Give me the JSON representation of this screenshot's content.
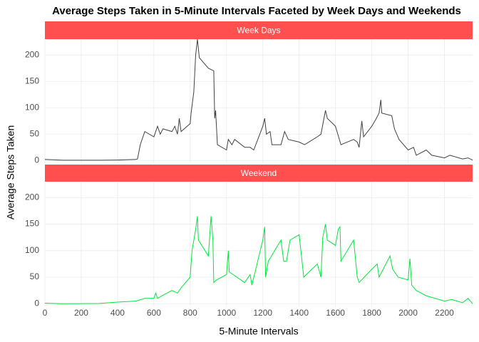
{
  "chart_data": [
    {
      "type": "line",
      "title": "Average Steps Taken in 5-Minute Intervals Faceted by Week Days and Weekends",
      "x_label": "5-Minute Intervals",
      "y_label": "Average Steps Taken",
      "strip_label": "Week Days",
      "color": "#404040",
      "x": [
        0,
        100,
        200,
        300,
        400,
        500,
        510,
        525,
        550,
        600,
        620,
        635,
        650,
        700,
        715,
        730,
        740,
        750,
        800,
        805,
        820,
        830,
        840,
        850,
        900,
        930,
        935,
        940,
        950,
        1000,
        1010,
        1030,
        1045,
        1100,
        1130,
        1150,
        1200,
        1210,
        1220,
        1240,
        1250,
        1300,
        1320,
        1340,
        1400,
        1430,
        1500,
        1520,
        1545,
        1555,
        1600,
        1630,
        1700,
        1720,
        1730,
        1745,
        1755,
        1800,
        1825,
        1840,
        1850,
        1855,
        1910,
        1925,
        1950,
        2000,
        2030,
        2045,
        2100,
        2130,
        2200,
        2230,
        2300,
        2330,
        2355
      ],
      "values": [
        2,
        0.5,
        0.5,
        0.5,
        1,
        2,
        3,
        30,
        55,
        45,
        65,
        50,
        60,
        55,
        65,
        50,
        80,
        55,
        70,
        90,
        130,
        200,
        230,
        195,
        175,
        170,
        80,
        95,
        30,
        20,
        40,
        30,
        40,
        25,
        25,
        20,
        65,
        80,
        50,
        55,
        30,
        30,
        55,
        40,
        35,
        30,
        45,
        50,
        95,
        80,
        65,
        30,
        40,
        35,
        25,
        75,
        45,
        65,
        80,
        90,
        115,
        90,
        85,
        60,
        40,
        20,
        25,
        10,
        20,
        10,
        5,
        10,
        3,
        5,
        1
      ],
      "xlim": [
        0,
        2355
      ],
      "ylim": [
        -5,
        230
      ],
      "xticks": [
        0,
        200,
        400,
        600,
        800,
        1000,
        1200,
        1400,
        1600,
        1800,
        2000,
        2200
      ],
      "yticks": [
        0,
        50,
        100,
        150,
        200
      ],
      "grid": true
    },
    {
      "type": "line",
      "strip_label": "Weekend",
      "color": "#00e63c",
      "x": [
        0,
        100,
        300,
        400,
        500,
        550,
        600,
        610,
        620,
        645,
        700,
        730,
        750,
        800,
        810,
        830,
        840,
        845,
        900,
        915,
        925,
        930,
        945,
        1000,
        1010,
        1015,
        1100,
        1130,
        1140,
        1200,
        1210,
        1215,
        1230,
        1300,
        1315,
        1330,
        1350,
        1400,
        1425,
        1500,
        1520,
        1530,
        1545,
        1555,
        1600,
        1615,
        1625,
        1630,
        1700,
        1720,
        1730,
        1800,
        1830,
        1840,
        1900,
        1915,
        1945,
        2000,
        2010,
        2020,
        2045,
        2100,
        2200,
        2240,
        2300,
        2330,
        2355
      ],
      "values": [
        1,
        0,
        0.5,
        3,
        5,
        10,
        10,
        20,
        10,
        15,
        25,
        20,
        30,
        50,
        100,
        140,
        165,
        120,
        90,
        165,
        120,
        40,
        45,
        55,
        100,
        60,
        40,
        55,
        35,
        120,
        145,
        50,
        80,
        120,
        80,
        80,
        120,
        130,
        50,
        75,
        50,
        125,
        150,
        120,
        110,
        140,
        145,
        80,
        120,
        50,
        40,
        65,
        75,
        50,
        90,
        65,
        50,
        45,
        85,
        35,
        25,
        15,
        5,
        8,
        2,
        10,
        0
      ],
      "xlim": [
        0,
        2355
      ],
      "ylim": [
        -5,
        230
      ],
      "xticks": [
        0,
        200,
        400,
        600,
        800,
        1000,
        1200,
        1400,
        1600,
        1800,
        2000,
        2200
      ],
      "yticks": [
        0,
        50,
        100,
        150,
        200
      ],
      "grid": true
    }
  ]
}
